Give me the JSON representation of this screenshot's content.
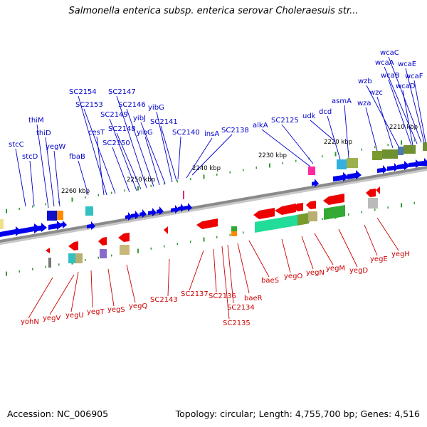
{
  "title": "Salmonella enterica subsp. enterica serovar Choleraesuis str...",
  "footer": {
    "accession": "Accession: NC_006905",
    "info": "Topology: circular; Length: 4,755,700 bp; Genes: 4,516"
  },
  "colors": {
    "forward_label": "#0000cc",
    "reverse_label": "#cc0000",
    "forward_gene": "#0000ee",
    "reverse_gene": "#ee0000",
    "backbone": "#888888",
    "tick": "#339933"
  },
  "scale_labels": [
    "2210 kbp",
    "2220 kbp",
    "2230 kbp",
    "2240 kbp",
    "2250 kbp",
    "2260 kbp"
  ],
  "forward_labels": [
    "wcaC",
    "wcaA",
    "wcaE",
    "wcaB",
    "wcaF",
    "wzb",
    "wcaD",
    "wzc",
    "wza",
    "asmA",
    "dcd",
    "udk",
    "SC2125",
    "alkA",
    "SC2138",
    "insA",
    "SC2140",
    "SC2141",
    "yibG",
    "yibJ",
    "yibG",
    "SC2146",
    "SC2147",
    "SC2148",
    "SC2149",
    "SC2150",
    "SC2153",
    "SC2154",
    "cesT",
    "fbaB",
    "yegW",
    "thiD",
    "thiM",
    "stcC",
    "stcD"
  ],
  "reverse_labels": [
    "yegH",
    "yegE",
    "yegD",
    "yegM",
    "yegN",
    "yegO",
    "baeS",
    "baeR",
    "SC2134",
    "SC2135",
    "SC2136",
    "SC2137",
    "SC2143",
    "yegQ",
    "yegS",
    "yegT",
    "yegU",
    "yegV",
    "yohN"
  ]
}
